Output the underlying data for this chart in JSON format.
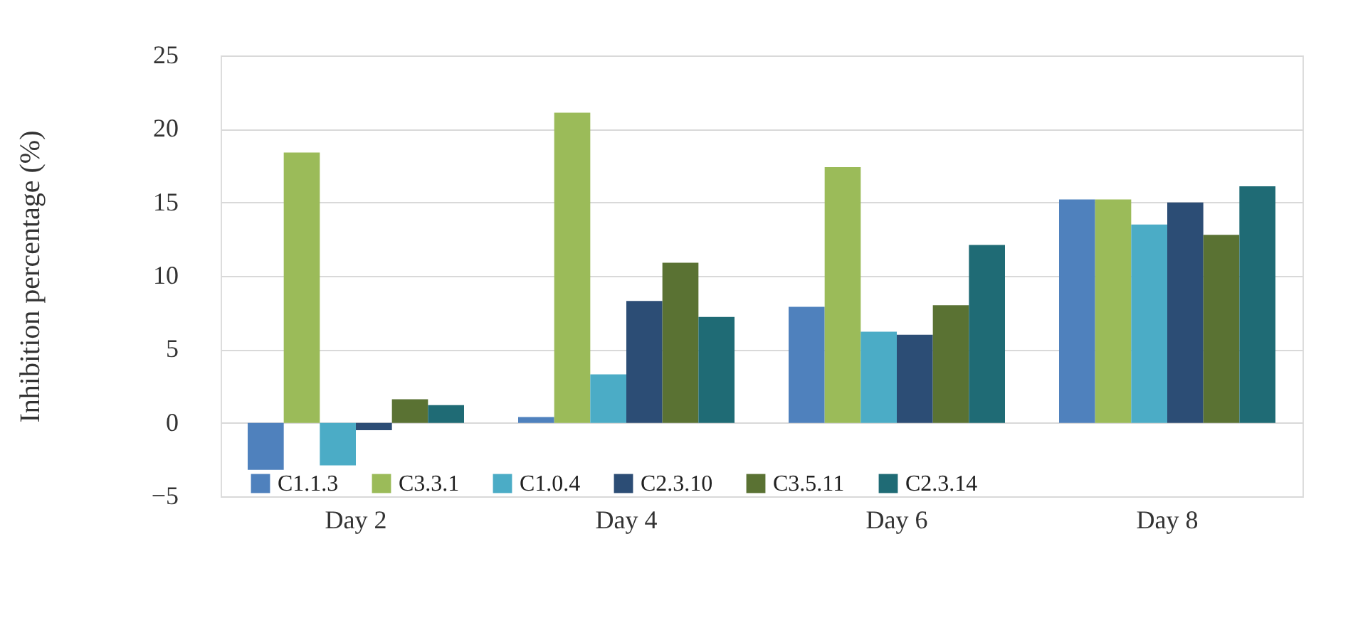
{
  "chart_data": {
    "type": "bar",
    "ylabel": "Inhibition percentage (%)",
    "categories": [
      "Day 2",
      "Day 4",
      "Day 6",
      "Day 8"
    ],
    "series": [
      {
        "name": "C1.1.3",
        "color": "#4f81bd",
        "values": [
          -3.2,
          0.4,
          7.9,
          15.2
        ]
      },
      {
        "name": "C3.3.1",
        "color": "#9bbb59",
        "values": [
          18.4,
          21.1,
          17.4,
          15.2
        ]
      },
      {
        "name": "C1.0.4",
        "color": "#4bacc6",
        "values": [
          -2.9,
          3.3,
          6.2,
          13.5
        ]
      },
      {
        "name": "C2.3.10",
        "color": "#2c4d75",
        "values": [
          -0.5,
          8.3,
          6.0,
          15.0
        ]
      },
      {
        "name": "C3.5.11",
        "color": "#5a7233",
        "values": [
          1.6,
          10.9,
          8.0,
          12.8
        ]
      },
      {
        "name": "C2.3.14",
        "color": "#1f6b75",
        "values": [
          1.2,
          7.2,
          12.1,
          16.1
        ]
      }
    ],
    "ylim": [
      -5,
      25
    ],
    "yticks": [
      -5,
      0,
      5,
      10,
      15,
      20,
      25
    ],
    "grid": "y",
    "legend": "bottom"
  }
}
